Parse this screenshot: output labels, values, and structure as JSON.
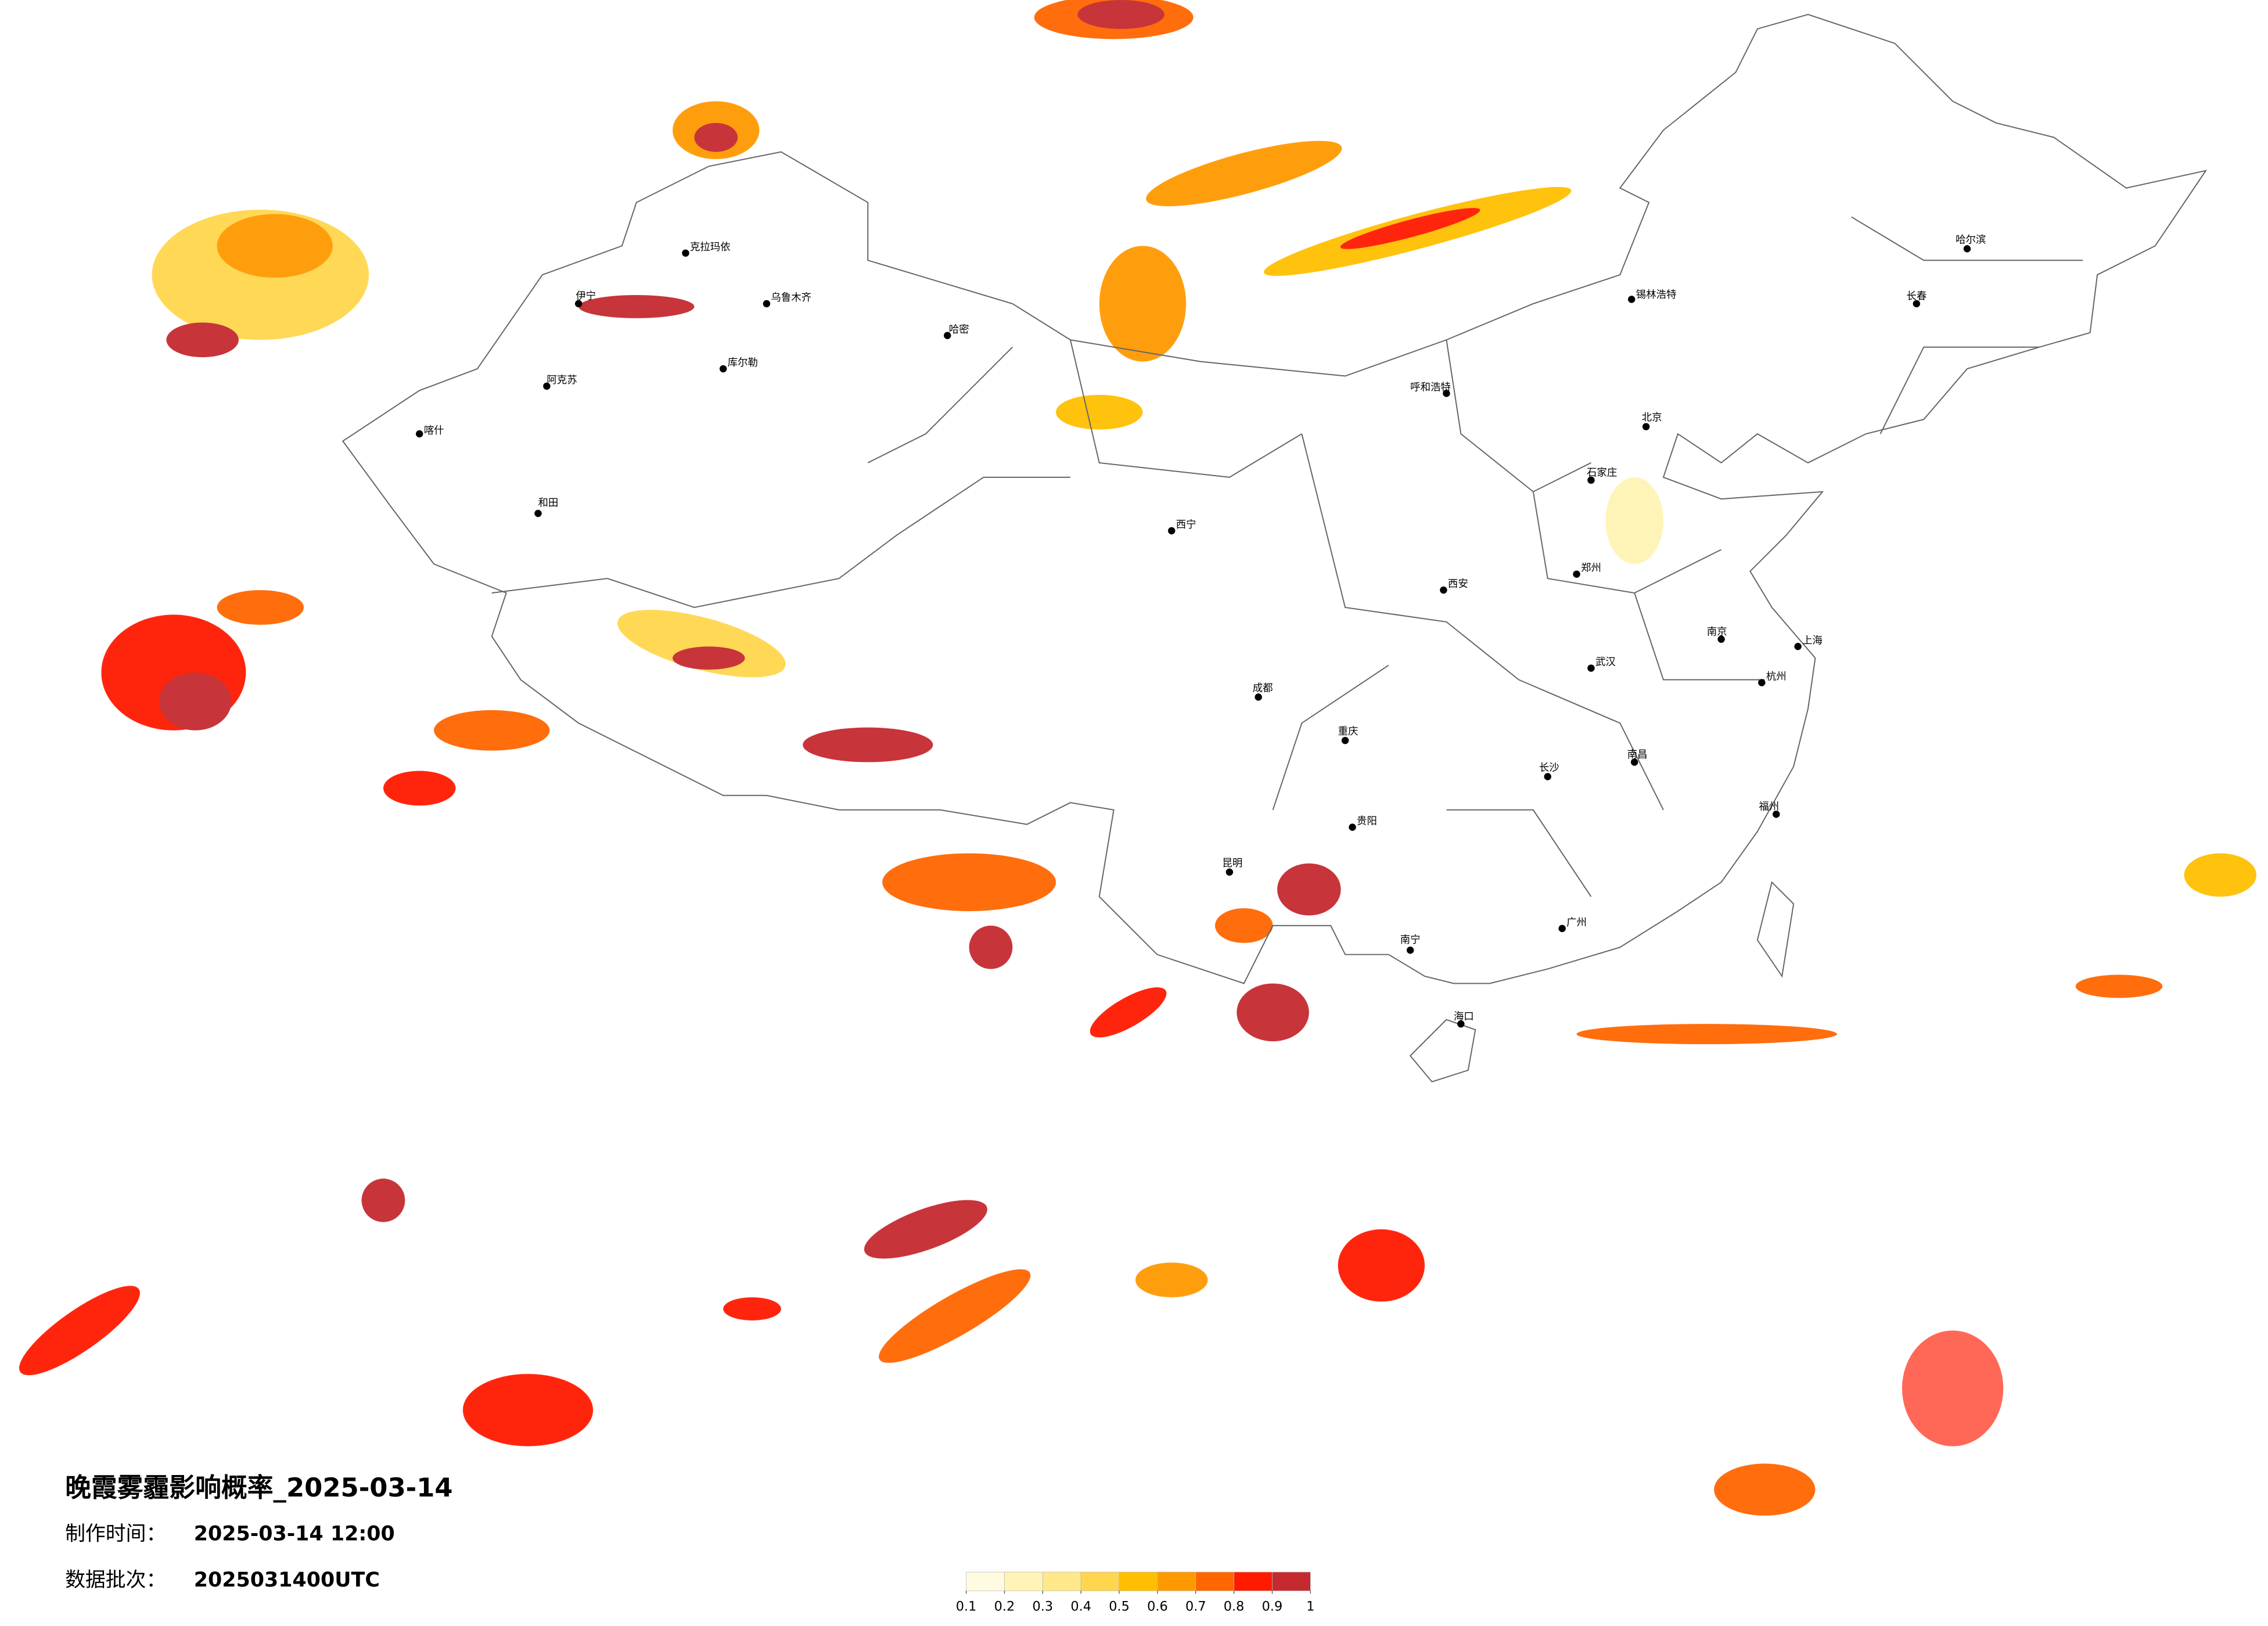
{
  "title": "晚霞雾霾影响概率_2025-03-14",
  "production_time": {
    "label": "制作时间：",
    "value": "2025-03-14 12:00"
  },
  "data_batch": {
    "label": "数据批次：",
    "value": "2025031400UTC"
  },
  "legend": {
    "colors": [
      "#fffbe0",
      "#fff4b5",
      "#ffe88a",
      "#ffd64d",
      "#ffbf00",
      "#ff9900",
      "#ff6600",
      "#ff1a00",
      "#c42a30"
    ],
    "ticks": [
      0.1,
      0.2,
      0.3,
      0.4,
      0.5,
      0.6,
      0.7,
      0.8,
      0.9,
      1
    ]
  },
  "cities": [
    "克拉玛依",
    "乌鲁木齐",
    "伊宁",
    "阿克苏",
    "喀什",
    "和田",
    "库尔勒",
    "哈密",
    "呼和浩特",
    "锡林浩特",
    "北京",
    "石家庄",
    "郑州",
    "西安",
    "武汉",
    "长沙",
    "南昌",
    "杭州",
    "上海",
    "南京",
    "福州",
    "广州",
    "南宁",
    "昆明",
    "贵阳",
    "重庆",
    "成都",
    "西宁",
    "哈尔滨",
    "长春",
    "海口"
  ]
}
